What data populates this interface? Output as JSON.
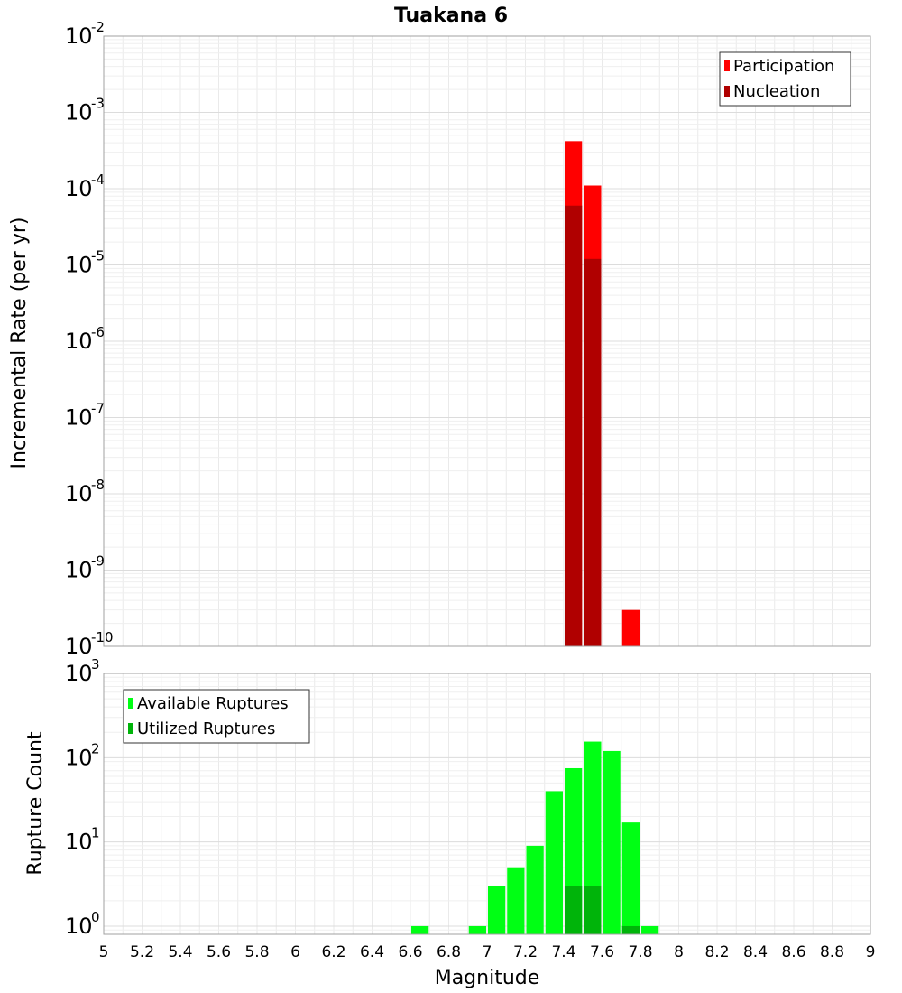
{
  "chart_data": [
    {
      "type": "bar",
      "title": "Tuakana 6",
      "ylabel": "Incremental Rate (per yr)",
      "xlabel": "",
      "xlim": [
        5,
        9
      ],
      "ylim": [
        1e-10,
        0.01
      ],
      "yscale": "log",
      "bin_width": 0.1,
      "grid": true,
      "legend_position": "top-right",
      "y_tick_exponents": [
        "-2",
        "-3",
        "-4",
        "-5",
        "-6",
        "-7",
        "-8",
        "-9",
        "-10"
      ],
      "series": [
        {
          "name": "Participation",
          "color": "#ff0000",
          "x": [
            7.45,
            7.55,
            7.75
          ],
          "values": [
            0.00042,
            0.00011,
            3e-10
          ]
        },
        {
          "name": "Nucleation",
          "color": "#b00000",
          "x": [
            7.45,
            7.55
          ],
          "values": [
            6e-05,
            1.2e-05
          ]
        }
      ]
    },
    {
      "type": "bar",
      "title": "",
      "ylabel": "Rupture Count",
      "xlabel": "Magnitude",
      "xlim": [
        5,
        9
      ],
      "ylim": [
        0.8,
        1000
      ],
      "yscale": "log",
      "bin_width": 0.1,
      "grid": true,
      "legend_position": "top-left",
      "y_tick_exponents": [
        "3",
        "2",
        "1",
        "0"
      ],
      "x_tick_labels": [
        "5",
        "5.2",
        "5.4",
        "5.6",
        "5.8",
        "6",
        "6.2",
        "6.4",
        "6.6",
        "6.8",
        "7",
        "7.2",
        "7.4",
        "7.6",
        "7.8",
        "8",
        "8.2",
        "8.4",
        "8.6",
        "8.8",
        "9"
      ],
      "series": [
        {
          "name": "Available Ruptures",
          "color": "#00ff14",
          "x": [
            6.65,
            6.95,
            7.05,
            7.15,
            7.25,
            7.35,
            7.45,
            7.55,
            7.65,
            7.75,
            7.85
          ],
          "values": [
            1,
            1,
            3,
            5,
            9,
            40,
            75,
            155,
            120,
            17,
            1
          ]
        },
        {
          "name": "Utilized Ruptures",
          "color": "#00b40a",
          "x": [
            7.45,
            7.55,
            7.75
          ],
          "values": [
            3,
            3,
            1
          ]
        }
      ]
    }
  ]
}
